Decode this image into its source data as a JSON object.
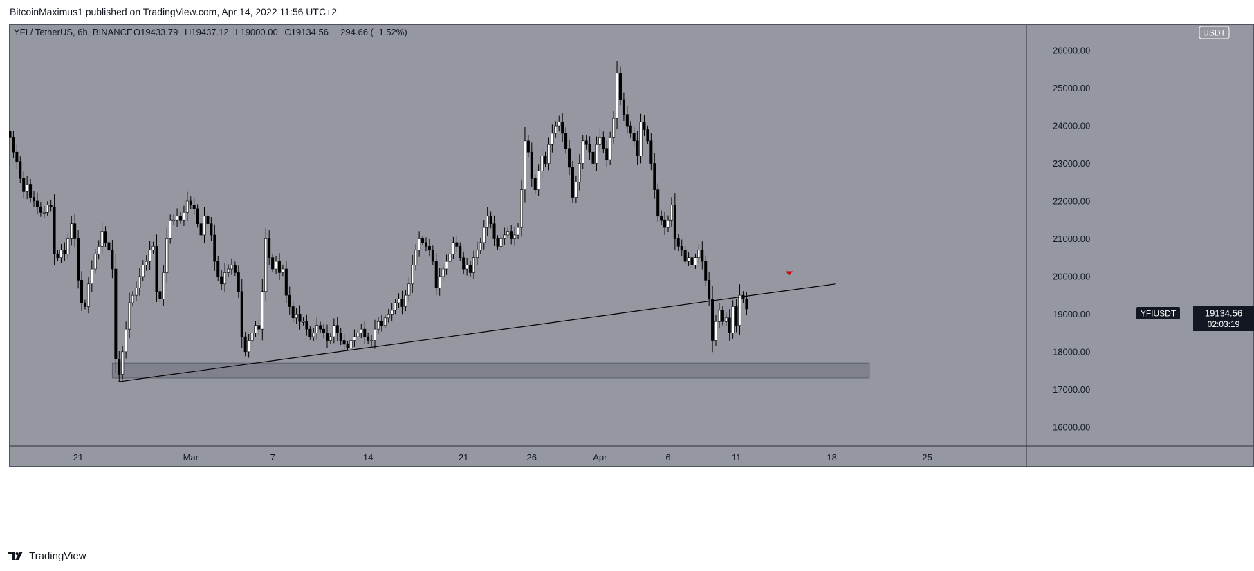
{
  "header": {
    "published_line": "BitcoinMaximus1 published on TradingView.com, Apr 14, 2022 11:56 UTC+2"
  },
  "legend": {
    "symbol": "YFI / TetherUS, 6h, BINANCE",
    "o_label": "O",
    "o_value": "19433.79",
    "h_label": "H",
    "h_value": "19437.12",
    "l_label": "L",
    "l_value": "19000.00",
    "c_label": "C",
    "c_value": "19134.56",
    "change": "−294.66 (−1.52%)"
  },
  "price_axis": {
    "currency": "USDT",
    "tick_labels": [
      "26000.00",
      "25000.00",
      "24000.00",
      "23000.00",
      "22000.00",
      "21000.00",
      "20000.00",
      "19000.00",
      "18000.00",
      "17000.00",
      "16000.00"
    ]
  },
  "time_axis": {
    "tick_labels": [
      "21",
      "Mar",
      "7",
      "14",
      "21",
      "26",
      "Apr",
      "6",
      "11",
      "18",
      "25"
    ]
  },
  "price_tag": {
    "symbol": "YFIUSDT",
    "price": "19134.56",
    "countdown": "02:03:19"
  },
  "footer": {
    "brand": "TradingView"
  },
  "colors": {
    "pane_background": "#9598a1",
    "candle_up": "#ffffff",
    "candle_down": "#000000",
    "support_zone": "#787b86",
    "arrow_marker": "#d50000",
    "price_tag_background": "#131722"
  },
  "chart_data": {
    "type": "candlestick",
    "title": "YFI / TetherUS, 6h, BINANCE",
    "ylim": [
      15500,
      26700
    ],
    "y_ticks": [
      26000,
      25000,
      24000,
      23000,
      22000,
      21000,
      20000,
      19000,
      18000,
      17000,
      16000
    ],
    "x_ticks": [
      {
        "label": "21",
        "bar": 20
      },
      {
        "label": "Mar",
        "bar": 53
      },
      {
        "label": "7",
        "bar": 77
      },
      {
        "label": "14",
        "bar": 105
      },
      {
        "label": "21",
        "bar": 133
      },
      {
        "label": "26",
        "bar": 153
      },
      {
        "label": "Apr",
        "bar": 173
      },
      {
        "label": "6",
        "bar": 193
      },
      {
        "label": "11",
        "bar": 213
      },
      {
        "label": "18",
        "bar": 241
      },
      {
        "label": "25",
        "bar": 269
      }
    ],
    "closes": [
      23700,
      23300,
      23050,
      22600,
      22250,
      22450,
      22100,
      22000,
      21850,
      21700,
      21700,
      21900,
      21850,
      20600,
      20500,
      20700,
      20600,
      21000,
      21400,
      21000,
      19900,
      19300,
      19200,
      19800,
      20200,
      20600,
      20800,
      21200,
      20900,
      20700,
      20200,
      17800,
      17400,
      18000,
      18600,
      19300,
      19500,
      19700,
      20000,
      20300,
      20400,
      20700,
      20800,
      19600,
      19400,
      20100,
      21000,
      21500,
      21500,
      21600,
      21500,
      21700,
      22000,
      21900,
      21800,
      21400,
      21100,
      21600,
      21400,
      21100,
      20400,
      20000,
      19800,
      20100,
      20200,
      20300,
      20100,
      19600,
      18400,
      18000,
      18300,
      18500,
      18700,
      18600,
      19600,
      21000,
      20500,
      20200,
      20400,
      20100,
      20200,
      19500,
      19200,
      18900,
      19000,
      18800,
      18800,
      18600,
      18400,
      18500,
      18700,
      18600,
      18500,
      18300,
      18400,
      18700,
      18500,
      18300,
      18200,
      18100,
      18300,
      18400,
      18500,
      18600,
      18400,
      18300,
      18300,
      18600,
      18800,
      18700,
      18900,
      19000,
      19100,
      19300,
      19400,
      19200,
      19500,
      19800,
      20300,
      20700,
      21000,
      20900,
      20800,
      20700,
      20400,
      19700,
      20000,
      20200,
      20400,
      20600,
      20900,
      20800,
      20500,
      20200,
      20300,
      20100,
      20500,
      20700,
      20900,
      21300,
      21600,
      21400,
      21000,
      20800,
      21000,
      21100,
      21200,
      21000,
      21100,
      21300,
      22300,
      23600,
      23300,
      22600,
      22300,
      22800,
      23200,
      23000,
      23500,
      23800,
      24000,
      24100,
      23800,
      23400,
      22900,
      22100,
      22500,
      23000,
      23600,
      23500,
      23300,
      23000,
      23500,
      23700,
      23400,
      23100,
      23700,
      24200,
      25400,
      24700,
      24300,
      24000,
      23800,
      23600,
      23200,
      24100,
      23900,
      23600,
      23000,
      22300,
      21600,
      21500,
      21300,
      21500,
      21900,
      21000,
      20800,
      20700,
      20400,
      20500,
      20300,
      20500,
      20700,
      20400,
      19900,
      19400,
      18300,
      18800,
      19100,
      18800,
      18900,
      18500,
      19200,
      18700,
      19500,
      19400,
      19134.56
    ],
    "support_zone": {
      "low": 17300,
      "high": 17700,
      "from_bar": 30,
      "to_bar": 252
    },
    "trendline": {
      "from_bar": 31.5,
      "from_price": 17200,
      "to_bar": 242,
      "to_price": 19800
    },
    "marker": {
      "type": "down-arrow",
      "bar": 228.5,
      "price": 20080
    }
  }
}
